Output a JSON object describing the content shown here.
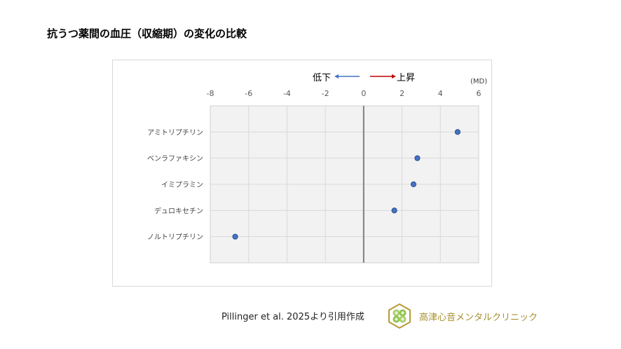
{
  "page": {
    "title": "抗うつ薬間の血圧（収縮期）の変化の比較"
  },
  "legend": {
    "decrease_label": "低下",
    "increase_label": "上昇",
    "decrease_color": "#4472c4",
    "increase_color": "#c00000",
    "unit_label": "(MD)"
  },
  "footer": {
    "citation": "Pillinger et al. 2025より引用作成",
    "clinic_name": "高津心音メンタルクリニック",
    "logo_icon": "hexagon-clover-logo-icon"
  },
  "chart_data": {
    "type": "scatter",
    "title": "抗うつ薬間の血圧（収縮期）の変化の比較",
    "xlabel": "(MD)",
    "ylabel": "",
    "xlim": [
      -8,
      6
    ],
    "x_ticks": [
      -8,
      -6,
      -4,
      -2,
      0,
      2,
      4,
      6
    ],
    "grid": true,
    "reference_line": 0,
    "annotations": [
      "低下 ←",
      "→ 上昇"
    ],
    "categories": [
      "アミトリプチリン",
      "ベンラファキシン",
      "イミプラミン",
      "デュロキセチン",
      "ノルトリプチリン"
    ],
    "values": [
      4.9,
      2.8,
      2.6,
      1.6,
      -6.7
    ],
    "marker_color": "#4472c4",
    "plot_background": "#f2f2f2",
    "legend_position": "none"
  }
}
